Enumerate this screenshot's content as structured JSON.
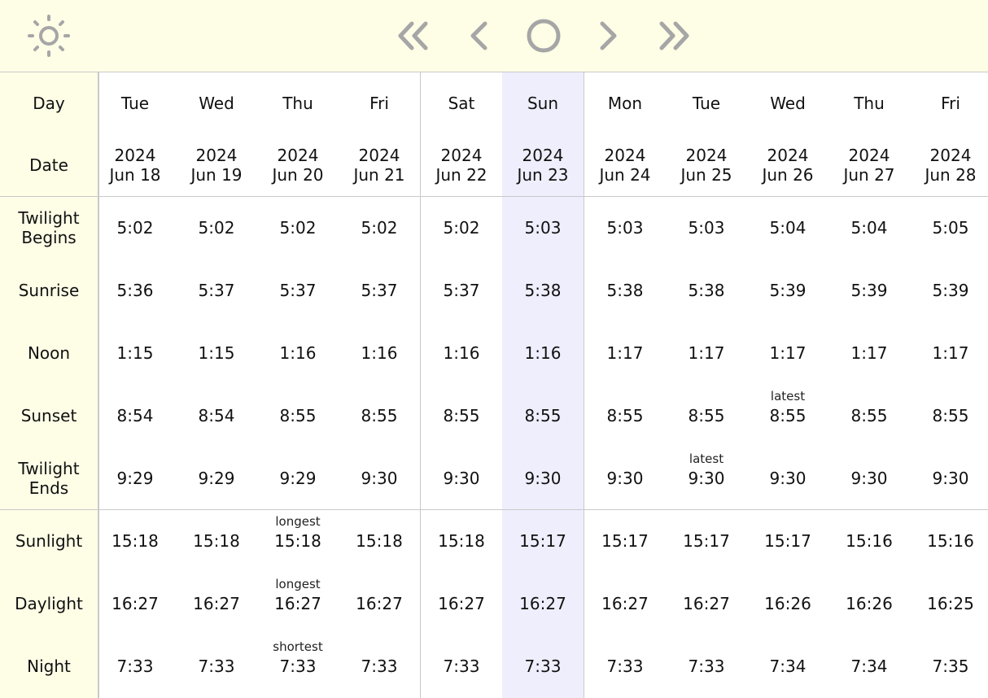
{
  "toolbar": {
    "icons": [
      "sun-icon",
      "double-chevron-left-icon",
      "chevron-left-icon",
      "circle-today-icon",
      "chevron-right-icon",
      "double-chevron-right-icon"
    ],
    "icon_color": "#a6a6a6"
  },
  "colors": {
    "sidebar_bg": "#fefde6",
    "today_bg": "#efeefd",
    "border": "#c9c9c9"
  },
  "labels": {
    "day": "Day",
    "date": "Date",
    "twilight_begins": "Twilight\nBegins",
    "sunrise": "Sunrise",
    "noon": "Noon",
    "sunset": "Sunset",
    "twilight_ends": "Twilight\nEnds",
    "sunlight": "Sunlight",
    "daylight": "Daylight",
    "night": "Night"
  },
  "days": [
    "Tue",
    "Wed",
    "Thu",
    "Fri",
    "Sat",
    "Sun",
    "Mon",
    "Tue",
    "Wed",
    "Thu",
    "Fri"
  ],
  "dates": [
    "2024\nJun 18",
    "2024\nJun 19",
    "2024\nJun 20",
    "2024\nJun 21",
    "2024\nJun 22",
    "2024\nJun 23",
    "2024\nJun 24",
    "2024\nJun 25",
    "2024\nJun 26",
    "2024\nJun 27",
    "2024\nJun 28"
  ],
  "today_index": 5,
  "rows": {
    "twilight_begins": [
      "5:02",
      "5:02",
      "5:02",
      "5:02",
      "5:02",
      "5:03",
      "5:03",
      "5:03",
      "5:04",
      "5:04",
      "5:05"
    ],
    "sunrise": [
      "5:36",
      "5:37",
      "5:37",
      "5:37",
      "5:37",
      "5:38",
      "5:38",
      "5:38",
      "5:39",
      "5:39",
      "5:39"
    ],
    "noon": [
      "1:15",
      "1:15",
      "1:16",
      "1:16",
      "1:16",
      "1:16",
      "1:17",
      "1:17",
      "1:17",
      "1:17",
      "1:17"
    ],
    "sunset": [
      "8:54",
      "8:54",
      "8:55",
      "8:55",
      "8:55",
      "8:55",
      "8:55",
      "8:55",
      "8:55",
      "8:55",
      "8:55"
    ],
    "twilight_ends": [
      "9:29",
      "9:29",
      "9:29",
      "9:30",
      "9:30",
      "9:30",
      "9:30",
      "9:30",
      "9:30",
      "9:30",
      "9:30"
    ],
    "sunlight": [
      "15:18",
      "15:18",
      "15:18",
      "15:18",
      "15:18",
      "15:17",
      "15:17",
      "15:17",
      "15:17",
      "15:16",
      "15:16"
    ],
    "daylight": [
      "16:27",
      "16:27",
      "16:27",
      "16:27",
      "16:27",
      "16:27",
      "16:27",
      "16:27",
      "16:26",
      "16:26",
      "16:25"
    ],
    "night": [
      "7:33",
      "7:33",
      "7:33",
      "7:33",
      "7:33",
      "7:33",
      "7:33",
      "7:33",
      "7:34",
      "7:34",
      "7:35"
    ]
  },
  "notes": [
    {
      "row": "sunset",
      "col": 8,
      "text": "latest"
    },
    {
      "row": "twilight_ends",
      "col": 7,
      "text": "latest"
    },
    {
      "row": "sunlight",
      "col": 2,
      "text": "longest"
    },
    {
      "row": "daylight",
      "col": 2,
      "text": "longest"
    },
    {
      "row": "night",
      "col": 2,
      "text": "shortest"
    }
  ]
}
